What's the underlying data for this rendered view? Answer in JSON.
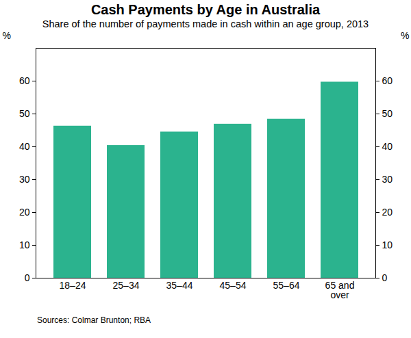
{
  "chart_data": {
    "type": "bar",
    "title": "Cash Payments by Age in Australia",
    "subtitle": "Share of the number of payments made in cash within an age group, 2013",
    "y_label": "%",
    "sources": "Sources: Colmar Brunton; RBA",
    "categories": [
      "18–24",
      "25–34",
      "35–44",
      "45–54",
      "55–64",
      "65 and over"
    ],
    "values": [
      46.3,
      40.4,
      44.5,
      46.9,
      48.4,
      59.7
    ],
    "color": "#2bb38e",
    "ylim": [
      0,
      70
    ],
    "yticks": [
      0,
      10,
      20,
      30,
      40,
      50,
      60
    ],
    "grid": false
  }
}
